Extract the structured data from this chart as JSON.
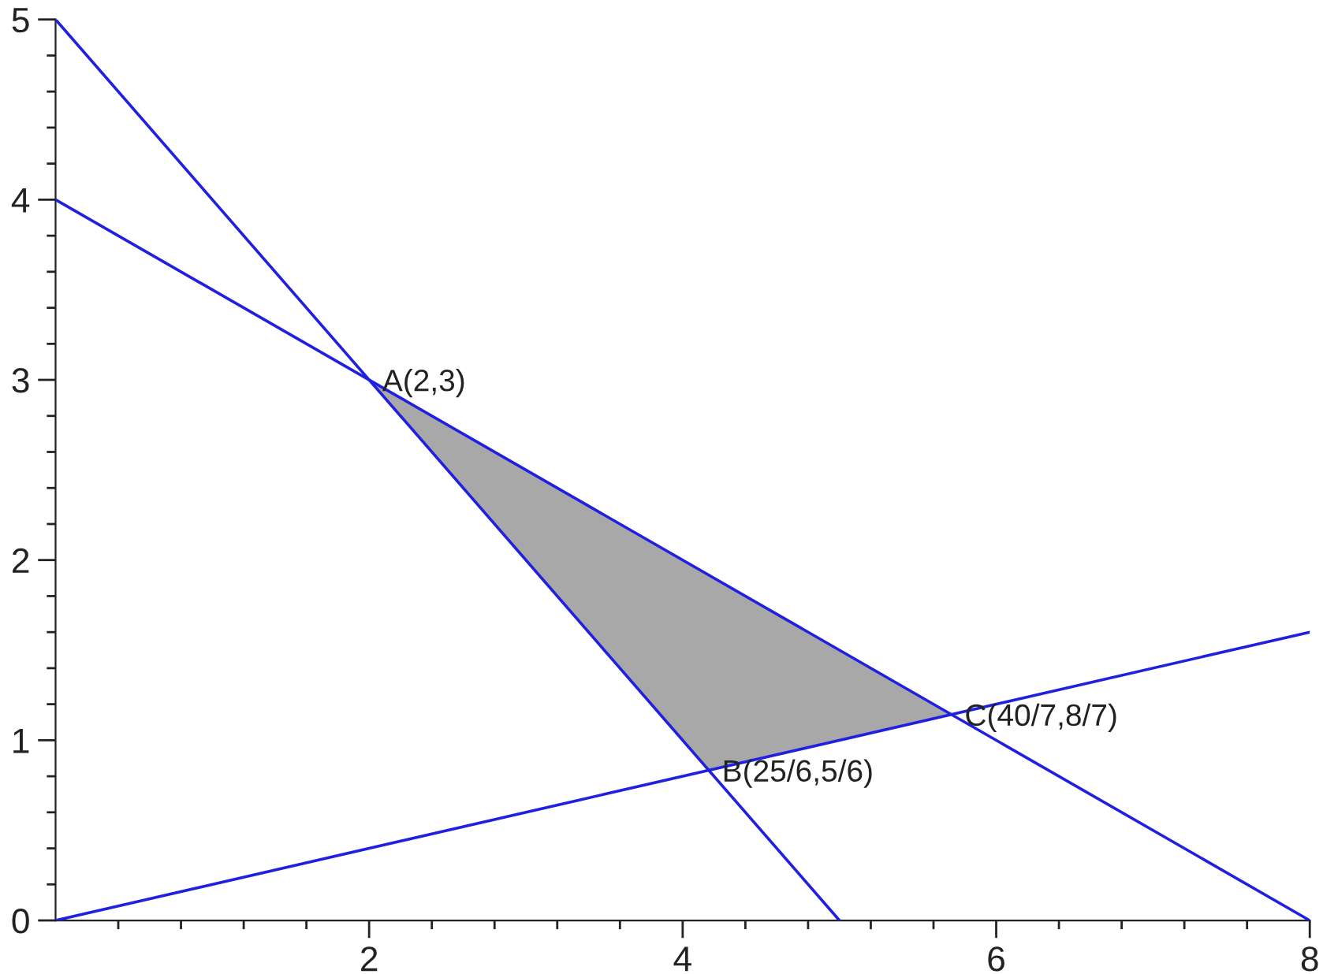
{
  "chart_data": {
    "type": "line",
    "series": [
      {
        "type": "area",
        "color": "#a8a8a8",
        "x": [
          2,
          4.1667,
          5.7143,
          2
        ],
        "values": [
          3,
          0.8333,
          1.1429,
          3
        ]
      },
      {
        "color": "#2020e0",
        "x": [
          0,
          5
        ],
        "values": [
          5,
          0
        ]
      },
      {
        "color": "#2020e0",
        "x": [
          0,
          8
        ],
        "values": [
          4,
          0
        ]
      },
      {
        "color": "#2020e0",
        "x": [
          0,
          8
        ],
        "values": [
          0,
          1.6
        ]
      }
    ],
    "annotations": [
      {
        "text": "A(2,3)",
        "x": 2,
        "y": 3
      },
      {
        "text": "B(25/6,5/6)",
        "x": 4.1667,
        "y": 0.8333
      },
      {
        "text": "C(40/7,8/7)",
        "x": 5.7143,
        "y": 1.1429
      }
    ],
    "xlim": [
      0,
      8
    ],
    "ylim": [
      0,
      5
    ],
    "xticks": [
      {
        "value": 0.4,
        "label": null
      },
      {
        "value": 0.8,
        "label": null
      },
      {
        "value": 1.2,
        "label": null
      },
      {
        "value": 1.6,
        "label": null
      },
      2,
      {
        "value": 2.4,
        "label": null
      },
      {
        "value": 2.8,
        "label": null
      },
      {
        "value": 3.2,
        "label": null
      },
      {
        "value": 3.6,
        "label": null
      },
      4,
      {
        "value": 4.4,
        "label": null
      },
      {
        "value": 4.8,
        "label": null
      },
      {
        "value": 5.2,
        "label": null
      },
      {
        "value": 5.6,
        "label": null
      },
      6,
      {
        "value": 6.4,
        "label": null
      },
      {
        "value": 6.8,
        "label": null
      },
      {
        "value": 7.2,
        "label": null
      },
      {
        "value": 7.6,
        "label": null
      },
      8
    ],
    "yticks": [
      0,
      {
        "value": 0.2,
        "label": null
      },
      {
        "value": 0.4,
        "label": null
      },
      {
        "value": 0.6,
        "label": null
      },
      {
        "value": 0.8,
        "label": null
      },
      1,
      {
        "value": 1.2,
        "label": null
      },
      {
        "value": 1.4,
        "label": null
      },
      {
        "value": 1.6,
        "label": null
      },
      {
        "value": 1.8,
        "label": null
      },
      2,
      {
        "value": 2.2,
        "label": null
      },
      {
        "value": 2.4,
        "label": null
      },
      {
        "value": 2.6,
        "label": null
      },
      {
        "value": 2.8,
        "label": null
      },
      3,
      {
        "value": 3.2,
        "label": null
      },
      {
        "value": 3.4,
        "label": null
      },
      {
        "value": 3.6,
        "label": null
      },
      {
        "value": 3.8,
        "label": null
      },
      4,
      {
        "value": 4.2,
        "label": null
      },
      {
        "value": 4.4,
        "label": null
      },
      {
        "value": 4.6,
        "label": null
      },
      {
        "value": 4.8,
        "label": null
      },
      5
    ],
    "grid": false,
    "legend": false
  }
}
